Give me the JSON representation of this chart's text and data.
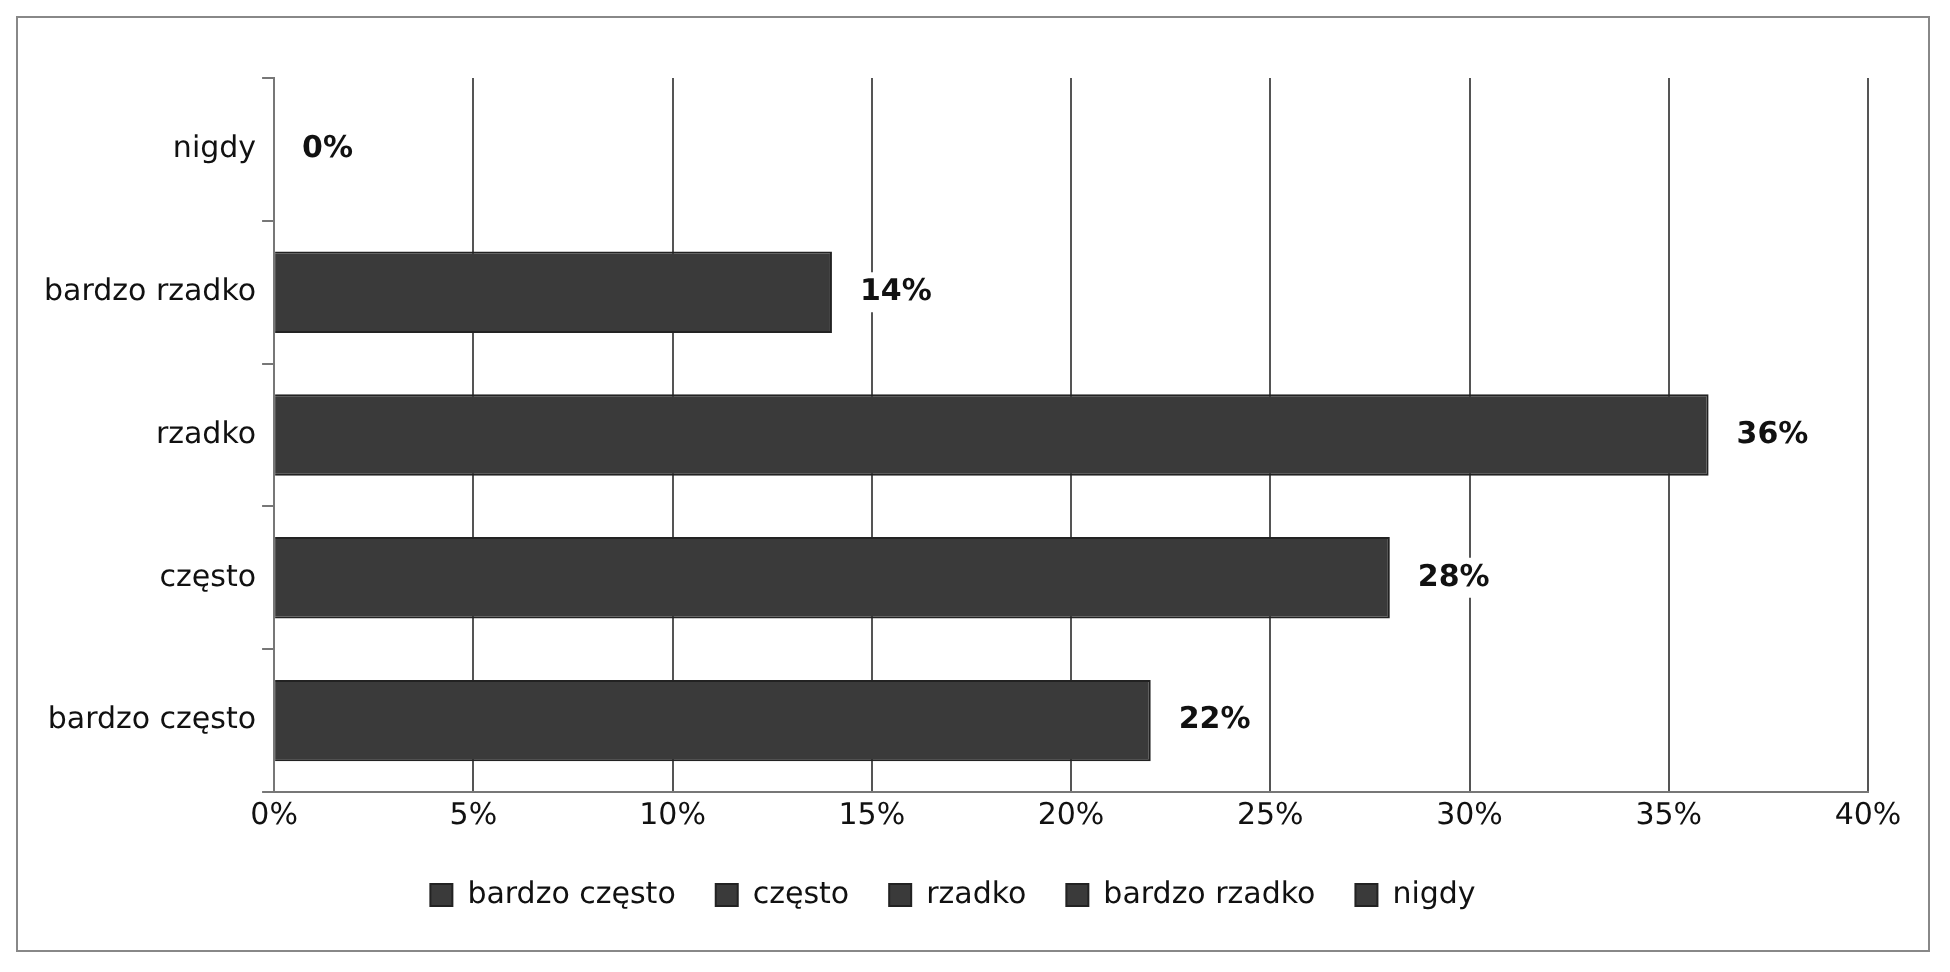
{
  "chart_data": {
    "type": "bar",
    "orientation": "horizontal",
    "stacked": true,
    "categories": [
      "nigdy",
      "bardzo rzadko",
      "rzadko",
      "często",
      "bardzo często"
    ],
    "series": [
      {
        "name": "bardzo często",
        "color": "#3a3a3a",
        "values": [
          null,
          null,
          null,
          null,
          22
        ],
        "value_labels": [
          null,
          null,
          null,
          null,
          "22%"
        ]
      },
      {
        "name": "często",
        "color": "#3a3a3a",
        "values": [
          null,
          null,
          null,
          28,
          null
        ],
        "value_labels": [
          null,
          null,
          null,
          "28%",
          null
        ]
      },
      {
        "name": "rzadko",
        "color": "#3a3a3a",
        "values": [
          null,
          null,
          36,
          null,
          null
        ],
        "value_labels": [
          null,
          null,
          "36%",
          null,
          null
        ]
      },
      {
        "name": "bardzo rzadko",
        "color": "#3a3a3a",
        "values": [
          null,
          14,
          null,
          null,
          null
        ],
        "value_labels": [
          null,
          "14%",
          null,
          null,
          null
        ]
      },
      {
        "name": "nigdy",
        "color": "#3a3a3a",
        "values": [
          0,
          null,
          null,
          null,
          null
        ],
        "value_labels": [
          "0%",
          null,
          null,
          null,
          null
        ]
      }
    ],
    "xlim": [
      0,
      40
    ],
    "xticks": [
      {
        "value": 0,
        "label": "0%"
      },
      {
        "value": 5,
        "label": "5%"
      },
      {
        "value": 10,
        "label": "10%"
      },
      {
        "value": 15,
        "label": "15%"
      },
      {
        "value": 20,
        "label": "20%"
      },
      {
        "value": 25,
        "label": "25%"
      },
      {
        "value": 30,
        "label": "30%"
      },
      {
        "value": 35,
        "label": "35%"
      },
      {
        "value": 40,
        "label": "40%"
      }
    ],
    "grid": "x",
    "legend": "bottom"
  }
}
